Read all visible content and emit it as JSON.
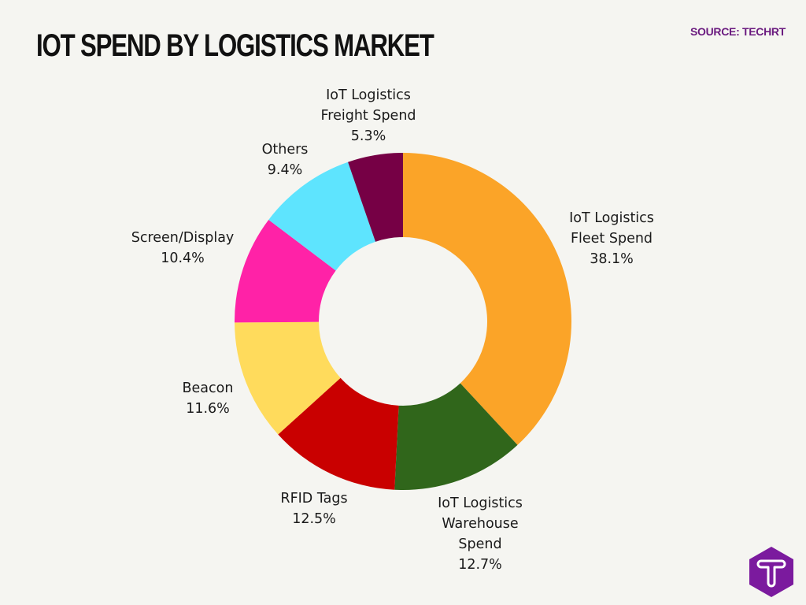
{
  "header": {
    "title": "IOT SPEND BY LOGISTICS MARKET",
    "source": "SOURCE: TECHRT"
  },
  "logo": {
    "icon": "techrt-t-hexagon-icon",
    "color": "#7b1a9e"
  },
  "chart_data": {
    "type": "pie",
    "subtype": "donut",
    "title": "IOT SPEND BY LOGISTICS MARKET",
    "source": "SOURCE: TECHRT",
    "categories": [
      "IoT Logistics Fleet Spend",
      "IoT Logistics Warehouse Spend",
      "RFID Tags",
      "Beacon",
      "Screen/Display",
      "Others",
      "IoT Logistics Freight Spend"
    ],
    "values": [
      38.1,
      12.7,
      12.5,
      11.6,
      10.4,
      9.4,
      5.3
    ],
    "unit": "%",
    "colors": [
      "#fba428",
      "#30661b",
      "#c90000",
      "#ffdb5c",
      "#ff22a7",
      "#5ee4fe",
      "#760045"
    ],
    "start_angle": "12 o'clock",
    "direction": "clockwise",
    "legend": "none (direct labels)",
    "labels": [
      {
        "lines": [
          "IoT Logistics",
          "Fleet Spend"
        ],
        "value": "38.1%"
      },
      {
        "lines": [
          "IoT Logistics",
          "Warehouse",
          "Spend"
        ],
        "value": "12.7%"
      },
      {
        "lines": [
          "RFID Tags"
        ],
        "value": "12.5%"
      },
      {
        "lines": [
          "Beacon"
        ],
        "value": "11.6%"
      },
      {
        "lines": [
          "Screen/Display"
        ],
        "value": "10.4%"
      },
      {
        "lines": [
          "Others"
        ],
        "value": "9.4%"
      },
      {
        "lines": [
          "IoT Logistics",
          "Freight Spend"
        ],
        "value": "5.3%"
      }
    ]
  }
}
